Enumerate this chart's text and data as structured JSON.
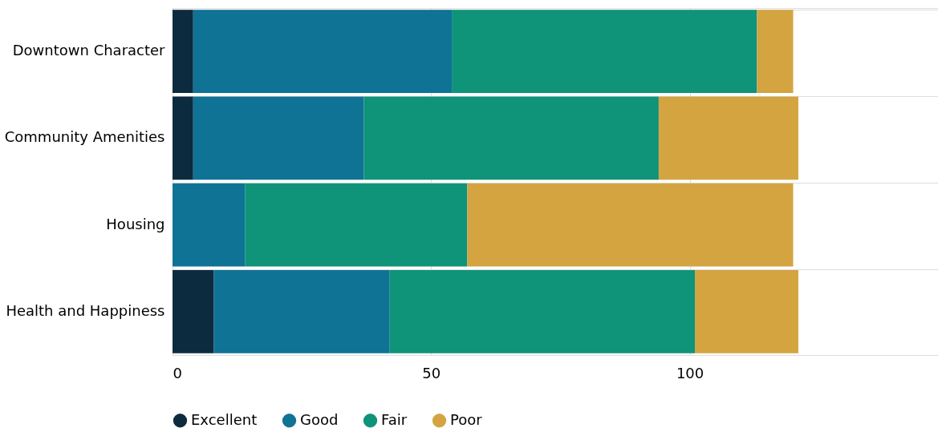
{
  "chart_data": {
    "type": "bar",
    "orientation": "horizontal",
    "stacked": true,
    "categories": [
      "Downtown Character",
      "Community Amenities",
      "Housing",
      "Health and Happiness"
    ],
    "series": [
      {
        "name": "Excellent",
        "color": "#0d2b3e",
        "values": [
          4,
          4,
          0,
          8
        ]
      },
      {
        "name": "Good",
        "color": "#0f7396",
        "values": [
          50,
          33,
          14,
          34
        ]
      },
      {
        "name": "Fair",
        "color": "#0f9379",
        "values": [
          59,
          57,
          43,
          59
        ]
      },
      {
        "name": "Poor",
        "color": "#d4a441",
        "values": [
          7,
          27,
          63,
          20
        ]
      }
    ],
    "xlim": [
      0,
      148
    ],
    "xticks": [
      0,
      50,
      100
    ],
    "grid": true,
    "legend": "bottom"
  }
}
